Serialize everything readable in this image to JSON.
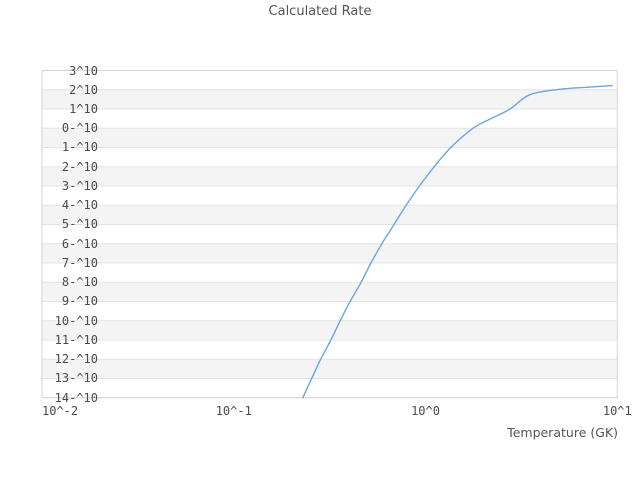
{
  "title": "Calculated Rate",
  "chart": {
    "xlabel": "Temperature (GK)",
    "x_ticks": [
      {
        "label": "10^-2",
        "value": -2
      },
      {
        "label": "10^-1",
        "value": -1
      },
      {
        "label": "10^0",
        "value": 0
      },
      {
        "label": "10^1",
        "value": 1
      }
    ],
    "y_ticks": [
      {
        "label": "10^3",
        "value": 3
      },
      {
        "label": "10^2",
        "value": 2
      },
      {
        "label": "10^1",
        "value": 1
      },
      {
        "label": "10^-0",
        "value": 0
      },
      {
        "label": "10^-1",
        "value": -1
      },
      {
        "label": "10^-2",
        "value": -2
      },
      {
        "label": "10^-3",
        "value": -3
      },
      {
        "label": "10^-4",
        "value": -4
      },
      {
        "label": "10^-5",
        "value": -5
      },
      {
        "label": "10^-6",
        "value": -6
      },
      {
        "label": "10^-7",
        "value": -7
      },
      {
        "label": "10^-8",
        "value": -8
      },
      {
        "label": "10^-9",
        "value": -9
      },
      {
        "label": "10^-10",
        "value": -10
      },
      {
        "label": "10^-11",
        "value": -11
      },
      {
        "label": "10^-12",
        "value": -12
      },
      {
        "label": "10^-13",
        "value": -13
      },
      {
        "label": "10^-14",
        "value": -14
      }
    ]
  },
  "chart_data": {
    "type": "line",
    "title": "Calculated Rate",
    "xlabel": "Temperature (GK)",
    "ylabel": "",
    "x_scale": "log",
    "y_scale": "log",
    "xlim": [
      0.01,
      10
    ],
    "ylim": [
      1e-14,
      1000
    ],
    "grid": "horizontal-only",
    "legend": "none",
    "series": [
      {
        "name": "calculated-rate",
        "x": [
          0.229,
          0.255,
          0.284,
          0.321,
          0.359,
          0.404,
          0.462,
          0.519,
          0.592,
          0.686,
          0.792,
          0.93,
          1.11,
          1.355,
          1.77,
          2.2,
          2.76,
          3.5,
          5.0,
          7.2,
          9.4
        ],
        "y": [
          1e-14,
          1e-13,
          1e-12,
          1e-11,
          1e-10,
          1e-09,
          1e-08,
          1e-07,
          1e-06,
          1e-05,
          0.0001,
          0.001,
          0.01,
          0.1,
          1.0,
          3.2,
          10,
          55,
          105,
          137,
          165
        ]
      }
    ]
  },
  "colors": {
    "line": "#6ea3e0",
    "band": "#f4f4f4",
    "grid": "#e3e3e3",
    "border": "#d5d5d5",
    "text": "#4a4a4a",
    "title": "#555555"
  }
}
